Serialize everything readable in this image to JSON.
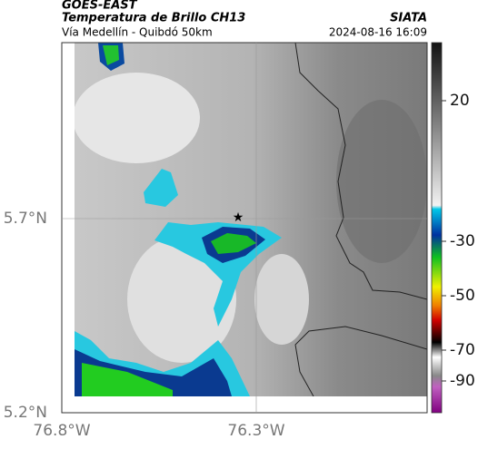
{
  "header": {
    "title": "GOES-EAST",
    "subtitle": "Temperatura de Brillo CH13",
    "source": "SIATA",
    "route": "Vía Medellín - Quibdó 50km",
    "datetime": "2024-08-16 16:09"
  },
  "axes": {
    "y_ticks": [
      "5.7°N",
      "5.2°N"
    ],
    "x_ticks": [
      "76.8°W",
      "76.3°W"
    ]
  },
  "colorbar": {
    "ticks": [
      20,
      -30,
      -50,
      -70,
      -90
    ]
  }
}
